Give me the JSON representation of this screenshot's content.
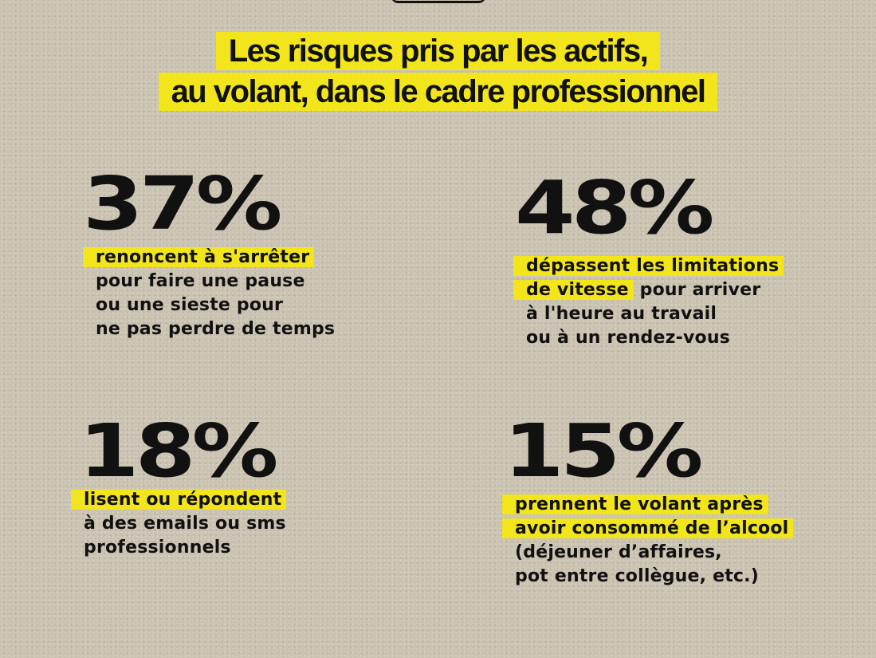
{
  "title": {
    "line1": "Les risques pris par les actifs,",
    "line2": "au volant, dans le cadre professionnel"
  },
  "stats": [
    {
      "value": "37%",
      "highlight": [
        "renoncent à s'arrêter"
      ],
      "rest": [
        "pour faire une pause",
        "ou une sieste pour",
        "ne pas perdre de temps"
      ]
    },
    {
      "value": "48%",
      "highlight_1": "dépassent les limitations",
      "highlight_2": "de vitesse",
      "line2_rest": " pour arriver",
      "rest": [
        "à l'heure au travail",
        "ou à un rendez-vous"
      ]
    },
    {
      "value": "18%",
      "highlight": [
        "lisent ou répondent"
      ],
      "rest": [
        "à des emails ou sms",
        "professionnels"
      ]
    },
    {
      "value": "15%",
      "highlight": [
        "prennent le volant après",
        "avoir consommé de l’alcool"
      ],
      "rest": [
        "(déjeuner d’affaires,",
        "pot entre collègue, etc.)"
      ]
    }
  ],
  "colors": {
    "highlight": "#f2e51c",
    "background": "#cbc3b1",
    "text": "#111111"
  }
}
